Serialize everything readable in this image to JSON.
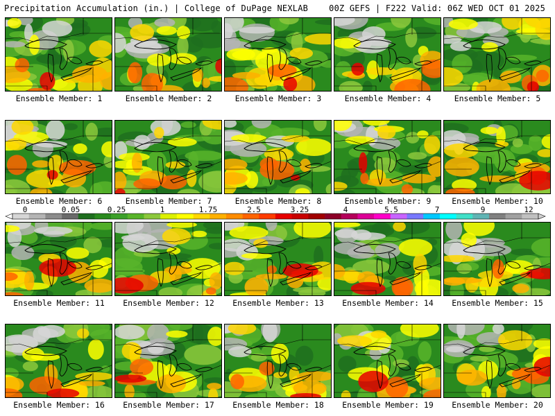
{
  "header": {
    "left": "Precipitation Accumulation (in.) | College of DuPage NEXLAB",
    "right": "00Z GEFS | F222 Valid: 06Z WED OCT 01 2025"
  },
  "members": [
    {
      "label": "Ensemble Member: 1"
    },
    {
      "label": "Ensemble Member: 2"
    },
    {
      "label": "Ensemble Member: 3"
    },
    {
      "label": "Ensemble Member: 4"
    },
    {
      "label": "Ensemble Member: 5"
    },
    {
      "label": "Ensemble Member: 6"
    },
    {
      "label": "Ensemble Member: 7"
    },
    {
      "label": "Ensemble Member: 8"
    },
    {
      "label": "Ensemble Member: 9"
    },
    {
      "label": "Ensemble Member: 10"
    },
    {
      "label": "Ensemble Member: 11"
    },
    {
      "label": "Ensemble Member: 12"
    },
    {
      "label": "Ensemble Member: 13"
    },
    {
      "label": "Ensemble Member: 14"
    },
    {
      "label": "Ensemble Member: 15"
    },
    {
      "label": "Ensemble Member: 16"
    },
    {
      "label": "Ensemble Member: 17"
    },
    {
      "label": "Ensemble Member: 18"
    },
    {
      "label": "Ensemble Member: 19"
    },
    {
      "label": "Ensemble Member: 20"
    }
  ],
  "colorbar": {
    "tick_labels": [
      "0",
      "0.05",
      "0.25",
      "1",
      "1.75",
      "2.5",
      "3.25",
      "4",
      "5.5",
      "7",
      "9",
      "12"
    ],
    "colors": [
      "#d6d6d6",
      "#b4b4b4",
      "#8c8c8c",
      "#6a6a6a",
      "#1e6e1e",
      "#2a8a1e",
      "#3ca02a",
      "#58b42a",
      "#8cc83c",
      "#dcf000",
      "#ffff00",
      "#ffd700",
      "#ffb000",
      "#ff8c00",
      "#ff6400",
      "#ff3c00",
      "#e60000",
      "#c80000",
      "#a00000",
      "#8c0028",
      "#b4005a",
      "#dc0096",
      "#ff00c8",
      "#c864ff",
      "#7878ff",
      "#00c8ff",
      "#00ffff",
      "#40e0c8",
      "#60b4b4",
      "#808080",
      "#a0a0a0",
      "#c0c0c0"
    ]
  }
}
